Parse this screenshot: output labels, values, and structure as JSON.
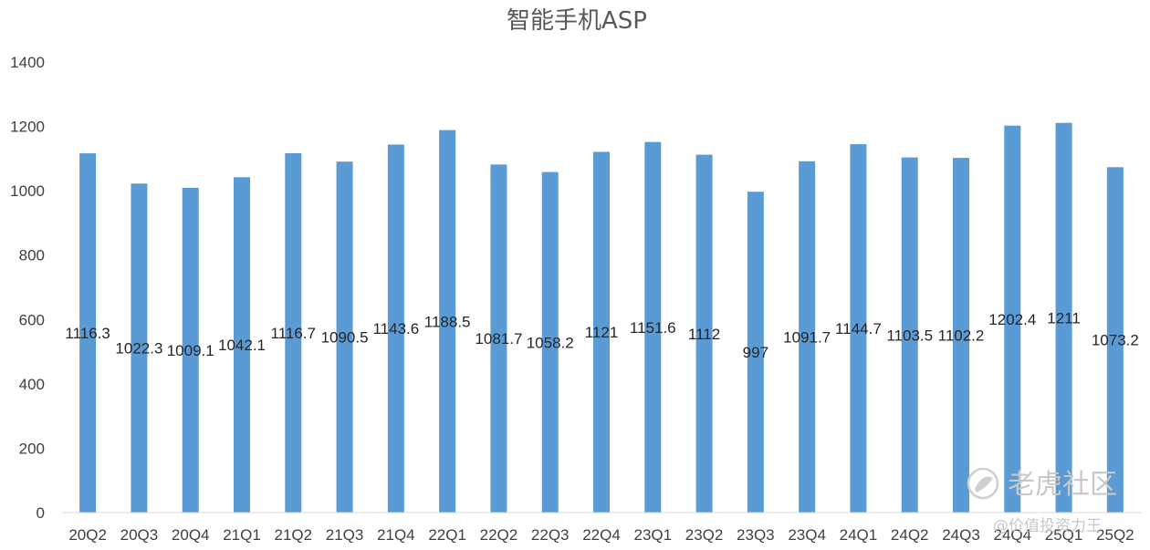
{
  "chart_data": {
    "type": "bar",
    "title": "智能手机ASP",
    "xlabel": "",
    "ylabel": "",
    "ylim": [
      0,
      1400
    ],
    "yticks": [
      0,
      200,
      400,
      600,
      800,
      1000,
      1200,
      1400
    ],
    "grid": false,
    "legend": "none",
    "bar_color": "#5B9BD5",
    "categories": [
      "20Q2",
      "20Q3",
      "20Q4",
      "21Q1",
      "21Q2",
      "21Q3",
      "21Q4",
      "22Q1",
      "22Q2",
      "22Q3",
      "22Q4",
      "23Q1",
      "23Q2",
      "23Q3",
      "23Q4",
      "24Q1",
      "24Q2",
      "24Q3",
      "24Q4",
      "25Q1",
      "25Q2"
    ],
    "values": [
      1116.3,
      1022.3,
      1009.1,
      1042.1,
      1116.7,
      1090.5,
      1143.6,
      1188.5,
      1081.7,
      1058.2,
      1121,
      1151.6,
      1112,
      997,
      1091.7,
      1144.7,
      1103.5,
      1102.2,
      1202.4,
      1211,
      1073.2
    ],
    "data_labels": [
      "1116.3",
      "1022.3",
      "1009.1",
      "1042.1",
      "1116.7",
      "1090.5",
      "1143.6",
      "1188.5",
      "1081.7",
      "1058.2",
      "1121",
      "1151.6",
      "1112",
      "997",
      "1091.7",
      "1144.7",
      "1103.5",
      "1102.2",
      "1202.4",
      "1211",
      "1073.2"
    ]
  },
  "watermark": {
    "brand": "老虎社区",
    "author": "@价值投资力王"
  }
}
